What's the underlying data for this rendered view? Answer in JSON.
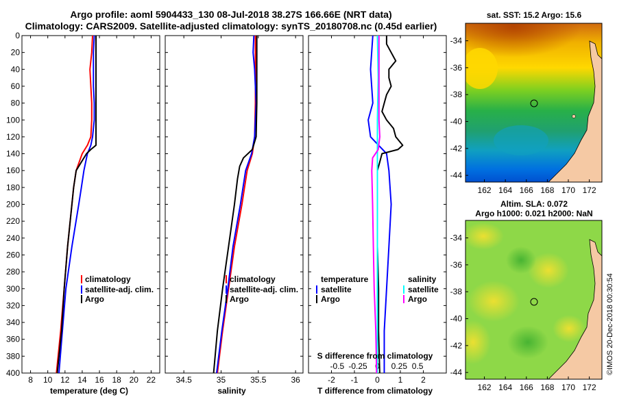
{
  "header": {
    "title_line1": "Argo profile: aoml 5904433_130 08-Jul-2018 38.27S 166.66E (NRT data)",
    "title_line2": "Climatology: CARS2009. Satellite-adjusted climatology: synTS_20180708.nc (0.45d earlier)"
  },
  "map_sst_title": "sat. SST: 15.2 Argo: 15.6",
  "map_sla_title_1": "Altim. SLA: 0.072",
  "map_sla_title_2": "Argo h1000: 0.021 h2000: NaN",
  "credit": "©IMOS 20-Dec-2018 00:30:54",
  "colors": {
    "climatology": "#ff0000",
    "satellite": "#0000ff",
    "argo": "#000000",
    "sal_satellite": "#00ffff",
    "sal_argo": "#ff00ff",
    "land": "#f5c9a4"
  },
  "chart_data": [
    {
      "type": "line",
      "name": "temperature-profile",
      "xlabel": "temperature (deg C)",
      "ylabel": "",
      "xlim": [
        7,
        23
      ],
      "ylim": [
        400,
        0
      ],
      "xticks": [
        "8",
        "10",
        "12",
        "14",
        "16",
        "18",
        "20",
        "22"
      ],
      "xtick_values": [
        8,
        10,
        12,
        14,
        16,
        18,
        20,
        22
      ],
      "yticks": [
        "0",
        "20",
        "40",
        "60",
        "80",
        "100",
        "120",
        "140",
        "160",
        "180",
        "200",
        "220",
        "240",
        "260",
        "280",
        "300",
        "320",
        "340",
        "360",
        "380",
        "400"
      ],
      "ytick_values": [
        0,
        20,
        40,
        60,
        80,
        100,
        120,
        140,
        160,
        180,
        200,
        220,
        240,
        260,
        280,
        300,
        320,
        340,
        360,
        380,
        400
      ],
      "legend": [
        "climatology",
        "satellite-adj. clim.",
        "Argo"
      ],
      "series": [
        {
          "name": "climatology",
          "depth": [
            0,
            20,
            40,
            60,
            80,
            100,
            120,
            130,
            140,
            160,
            180,
            200,
            250,
            300,
            350,
            400
          ],
          "values": [
            15.2,
            15.1,
            14.9,
            15.0,
            15.1,
            15.1,
            15.0,
            14.6,
            14.0,
            13.3,
            13.0,
            12.8,
            12.3,
            11.9,
            11.5,
            11.0
          ]
        },
        {
          "name": "satellite-adj. clim.",
          "depth": [
            0,
            20,
            40,
            60,
            80,
            100,
            120,
            130,
            140,
            160,
            180,
            200,
            250,
            300,
            350,
            400
          ],
          "values": [
            15.4,
            15.3,
            15.3,
            15.3,
            15.4,
            15.4,
            15.2,
            15.0,
            14.6,
            14.2,
            13.9,
            13.6,
            12.8,
            12.1,
            11.7,
            11.3
          ]
        },
        {
          "name": "Argo",
          "depth": [
            0,
            20,
            40,
            60,
            80,
            100,
            120,
            130,
            135,
            140,
            160,
            180,
            200,
            250,
            300,
            350,
            400
          ],
          "values": [
            15.6,
            15.6,
            15.6,
            15.6,
            15.6,
            15.6,
            15.6,
            15.6,
            15.0,
            14.5,
            13.3,
            13.0,
            12.8,
            12.3,
            11.9,
            11.6,
            11.1
          ]
        }
      ]
    },
    {
      "type": "line",
      "name": "salinity-profile",
      "xlabel": "salinity",
      "xlim": [
        34.25,
        36.1
      ],
      "ylim": [
        400,
        0
      ],
      "xticks": [
        "34.5",
        "35",
        "35.5",
        "36"
      ],
      "xtick_values": [
        34.5,
        35,
        35.5,
        36
      ],
      "legend": [
        "climatology",
        "satellite-adj. clim.",
        "Argo"
      ],
      "series": [
        {
          "name": "climatology",
          "depth": [
            0,
            40,
            80,
            120,
            140,
            160,
            200,
            250,
            300,
            350,
            400
          ],
          "values": [
            35.46,
            35.46,
            35.46,
            35.45,
            35.42,
            35.35,
            35.28,
            35.18,
            35.1,
            35.02,
            34.95
          ]
        },
        {
          "name": "satellite-adj. clim.",
          "depth": [
            0,
            20,
            40,
            60,
            80,
            100,
            120,
            140,
            160,
            200,
            250,
            300,
            350,
            400
          ],
          "values": [
            35.44,
            35.43,
            35.45,
            35.46,
            35.47,
            35.46,
            35.45,
            35.41,
            35.33,
            35.26,
            35.16,
            35.09,
            35.01,
            34.94
          ]
        },
        {
          "name": "Argo",
          "depth": [
            0,
            40,
            80,
            120,
            135,
            145,
            155,
            170,
            200,
            250,
            300,
            350,
            400
          ],
          "values": [
            35.48,
            35.48,
            35.48,
            35.47,
            35.42,
            35.3,
            35.25,
            35.22,
            35.18,
            35.1,
            35.02,
            34.95,
            34.9
          ]
        }
      ]
    },
    {
      "type": "line",
      "name": "difference-profile",
      "xlabel": "T difference from climatology",
      "xlabel_top": "S difference from climatology",
      "xlim": [
        -3,
        3
      ],
      "ylim": [
        400,
        0
      ],
      "xticks": [
        "-2",
        "-1",
        "0",
        "1",
        "2"
      ],
      "xtick_values": [
        -2,
        -1,
        0,
        1,
        2
      ],
      "s_xticks": [
        "-0.5",
        "-0.25",
        "0",
        "0.25",
        "0.5"
      ],
      "legend_temperature": {
        "title": "temperature",
        "items": [
          "satellite",
          "Argo"
        ]
      },
      "legend_salinity": {
        "title": "salinity",
        "items": [
          "satellite",
          "Argo"
        ]
      },
      "series": [
        {
          "name": "T satellite",
          "depth": [
            0,
            40,
            80,
            100,
            120,
            140,
            160,
            200,
            250,
            300,
            350,
            400
          ],
          "values": [
            -0.2,
            -0.3,
            -0.2,
            -0.4,
            -0.3,
            0.4,
            0.5,
            0.6,
            0.5,
            0.4,
            0.3,
            0.3
          ]
        },
        {
          "name": "T Argo",
          "depth": [
            0,
            10,
            20,
            30,
            40,
            50,
            60,
            70,
            80,
            90,
            100,
            110,
            120,
            130,
            135,
            140,
            150,
            160,
            180,
            200,
            250,
            300,
            350,
            400
          ],
          "values": [
            0.4,
            0.4,
            0.6,
            0.8,
            0.5,
            0.5,
            0.6,
            0.4,
            0.3,
            0.2,
            0.4,
            0.7,
            0.8,
            1.1,
            0.9,
            0.2,
            0.1,
            0.0,
            0.0,
            0.0,
            0.0,
            0.05,
            0.05,
            0.1
          ]
        },
        {
          "name": "S satellite",
          "depth": [
            0,
            50,
            100,
            150,
            200,
            250,
            300,
            350,
            400
          ],
          "values": [
            0.0,
            0.01,
            0.0,
            0.0,
            0.0,
            0.0,
            0.0,
            0.0,
            0.0
          ]
        },
        {
          "name": "S Argo",
          "depth": [
            0,
            20,
            60,
            100,
            120,
            135,
            145,
            160,
            200,
            250,
            300,
            350,
            400
          ],
          "values": [
            0.02,
            0.02,
            0.02,
            0.02,
            0.03,
            0.01,
            -0.06,
            -0.07,
            -0.06,
            -0.05,
            -0.04,
            -0.02,
            -0.01
          ]
        }
      ]
    },
    {
      "type": "heatmap",
      "name": "sst-map",
      "title": "sat. SST: 15.2 Argo: 15.6",
      "xticks": [
        "162",
        "164",
        "166",
        "168",
        "170",
        "172"
      ],
      "yticks": [
        "-34",
        "-36",
        "-38",
        "-40",
        "-42",
        "-44"
      ],
      "xlim": [
        160.2,
        173.2
      ],
      "ylim": [
        -44.5,
        -32.7
      ],
      "argo_position": [
        166.66,
        -38.27
      ]
    },
    {
      "type": "heatmap",
      "name": "sla-map",
      "title": "Altim. SLA: 0.072",
      "xticks": [
        "162",
        "164",
        "166",
        "168",
        "170",
        "172"
      ],
      "yticks": [
        "-34",
        "-36",
        "-38",
        "-40",
        "-42",
        "-44"
      ],
      "xlim": [
        160.2,
        173.2
      ],
      "ylim": [
        -44.5,
        -32.7
      ],
      "argo_position": [
        166.66,
        -38.27
      ]
    }
  ]
}
